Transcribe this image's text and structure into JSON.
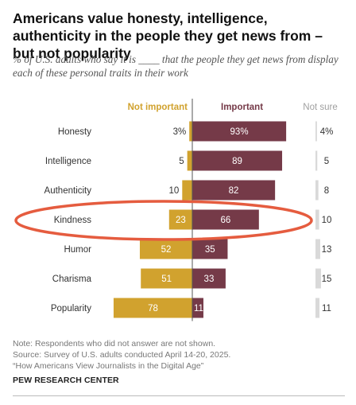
{
  "title": "Americans value honesty, intelligence, authenticity in the people they get news from – but not popularity",
  "subtitle": "% of U.S. adults who say it is ____ that the people they get news from display each of these personal traits in their work",
  "notes": {
    "note": "Note: Respondents who did not answer are not shown.",
    "source": "Source: Survey of U.S. adults conducted April 14-20, 2025.",
    "report": "“How Americans View Journalists in the Digital Age”"
  },
  "org": "PEW RESEARCH CENTER",
  "colors": {
    "not_important": "#D1A22E",
    "important": "#753A48",
    "not_sure": "#D9D9D9",
    "highlight": "#E55C3F"
  },
  "chart_data": {
    "type": "bar",
    "orientation": "diverging horizontal",
    "categories": [
      "Honesty",
      "Intelligence",
      "Authenticity",
      "Kindness",
      "Humor",
      "Charisma",
      "Popularity"
    ],
    "series": [
      {
        "name": "Not important",
        "values": [
          3,
          5,
          10,
          23,
          52,
          51,
          78
        ],
        "labels": [
          "3%",
          "5",
          "10",
          "23",
          "52",
          "51",
          "78"
        ]
      },
      {
        "name": "Important",
        "values": [
          93,
          89,
          82,
          66,
          35,
          33,
          11
        ],
        "labels": [
          "93%",
          "89",
          "82",
          "66",
          "35",
          "33",
          "11"
        ]
      },
      {
        "name": "Not sure",
        "values": [
          4,
          5,
          8,
          10,
          13,
          15,
          11
        ],
        "labels": [
          "4%",
          "5",
          "8",
          "10",
          "13",
          "15",
          "11"
        ]
      }
    ],
    "highlighted_category": "Kindness"
  }
}
